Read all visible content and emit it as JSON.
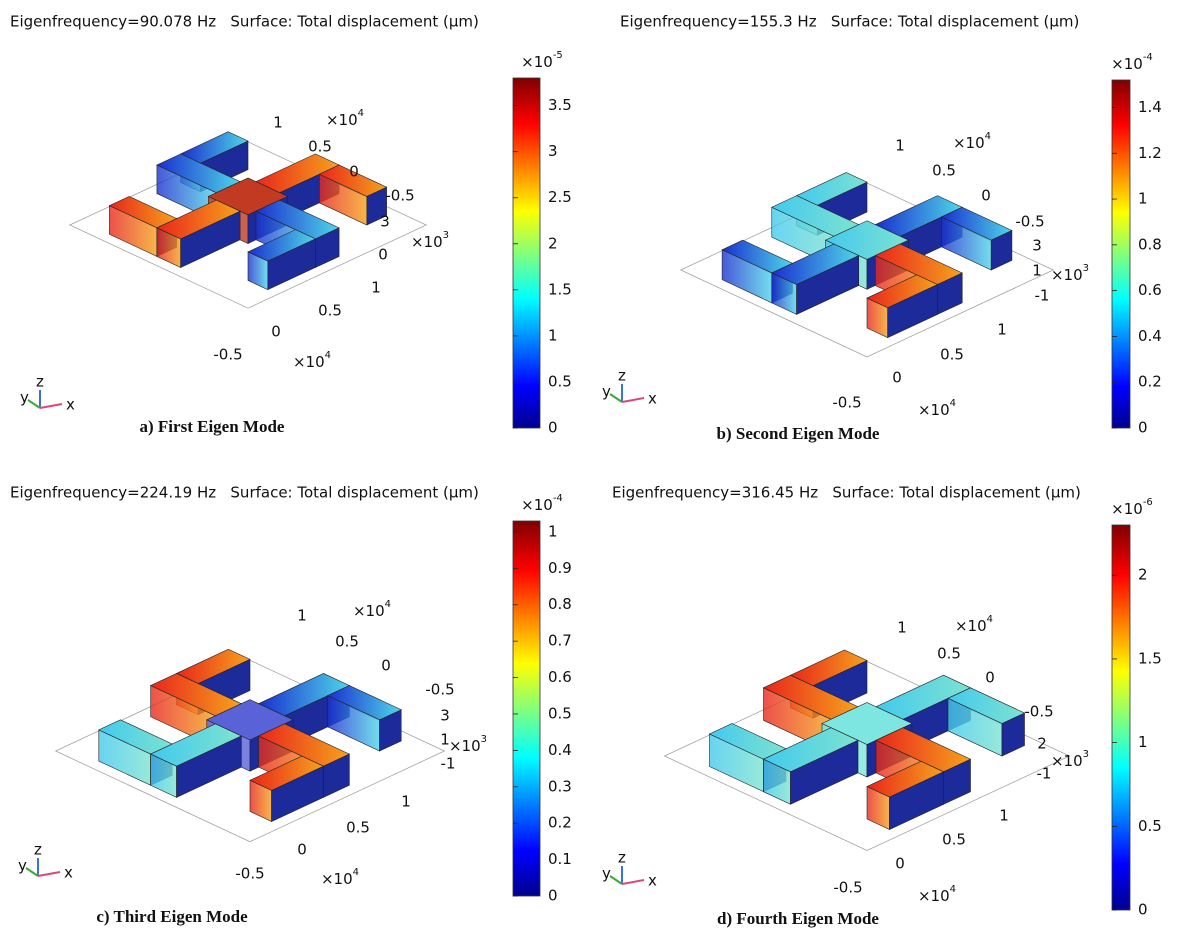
{
  "panels": [
    {
      "header": "Eigenfrequency=90.078 Hz   Surface: Total displacement (µm)",
      "caption": "a) First Eigen Mode",
      "colorbar": {
        "range": [
          0,
          3.8
        ],
        "ticks": [
          0,
          0.5,
          1,
          1.5,
          2,
          2.5,
          3,
          3.5
        ],
        "scale": {
          "base": "×10",
          "exponent": "-5"
        }
      },
      "axes": {
        "y": {
          "ticks": [
            1,
            0.5,
            0,
            -0.5
          ],
          "scale": {
            "base": "×10",
            "exponent": "4"
          }
        },
        "z": {
          "ticks": [
            3,
            0
          ],
          "scale": {
            "base": "×10",
            "exponent": "3"
          }
        },
        "x": {
          "ticks": [
            1,
            0.5,
            0,
            -0.5
          ],
          "scale": {
            "base": "×10",
            "exponent": "4"
          }
        }
      },
      "triad": [
        "y",
        "z",
        "x"
      ]
    },
    {
      "header": "Eigenfrequency=155.3 Hz   Surface: Total displacement (µm)",
      "caption": "b) Second Eigen Mode",
      "colorbar": {
        "range": [
          0,
          1.52
        ],
        "ticks": [
          0,
          0.2,
          0.4,
          0.6,
          0.8,
          1,
          1.2,
          1.4
        ],
        "scale": {
          "base": "×10",
          "exponent": "-4"
        }
      },
      "axes": {
        "y": {
          "ticks": [
            1,
            0.5,
            0,
            -0.5
          ],
          "scale": {
            "base": "×10",
            "exponent": "4"
          }
        },
        "z": {
          "ticks": [
            3,
            1,
            -1
          ],
          "scale": {
            "base": "×10",
            "exponent": "3"
          }
        },
        "x": {
          "ticks": [
            1,
            0.5,
            0,
            -0.5
          ],
          "scale": {
            "base": "×10",
            "exponent": "4"
          }
        }
      },
      "triad": [
        "y",
        "z",
        "x"
      ]
    },
    {
      "header": "Eigenfrequency=224.19 Hz   Surface: Total displacement (µm)",
      "caption": "c) Third Eigen Mode",
      "colorbar": {
        "range": [
          0,
          1.03
        ],
        "ticks": [
          0,
          0.1,
          0.2,
          0.3,
          0.4,
          0.5,
          0.6,
          0.7,
          0.8,
          0.9,
          1
        ],
        "scale": {
          "base": "×10",
          "exponent": "-4"
        }
      },
      "axes": {
        "y": {
          "ticks": [
            1,
            0.5,
            0,
            -0.5
          ],
          "scale": {
            "base": "×10",
            "exponent": "4"
          }
        },
        "z": {
          "ticks": [
            3,
            1,
            -1
          ],
          "scale": {
            "base": "×10",
            "exponent": "3"
          }
        },
        "x": {
          "ticks": [
            1,
            0.5,
            0,
            -0.5
          ],
          "scale": {
            "base": "×10",
            "exponent": "4"
          }
        }
      },
      "triad": [
        "y",
        "z",
        "x"
      ]
    },
    {
      "header": "Eigenfrequency=316.45 Hz   Surface: Total displacement (µm)",
      "caption": "d) Fourth Eigen Mode",
      "colorbar": {
        "range": [
          0,
          2.3
        ],
        "ticks": [
          0,
          0.5,
          1,
          1.5,
          2
        ],
        "scale": {
          "base": "×10",
          "exponent": "-6"
        }
      },
      "axes": {
        "y": {
          "ticks": [
            1,
            0.5,
            0,
            -0.5
          ],
          "scale": {
            "base": "×10",
            "exponent": "4"
          }
        },
        "z": {
          "ticks": [
            2,
            -1
          ],
          "scale": {
            "base": "×10",
            "exponent": "3"
          }
        },
        "x": {
          "ticks": [
            1,
            0.5,
            0,
            -0.5
          ],
          "scale": {
            "base": "×10",
            "exponent": "4"
          }
        }
      },
      "triad": [
        "y",
        "z",
        "x"
      ]
    }
  ]
}
